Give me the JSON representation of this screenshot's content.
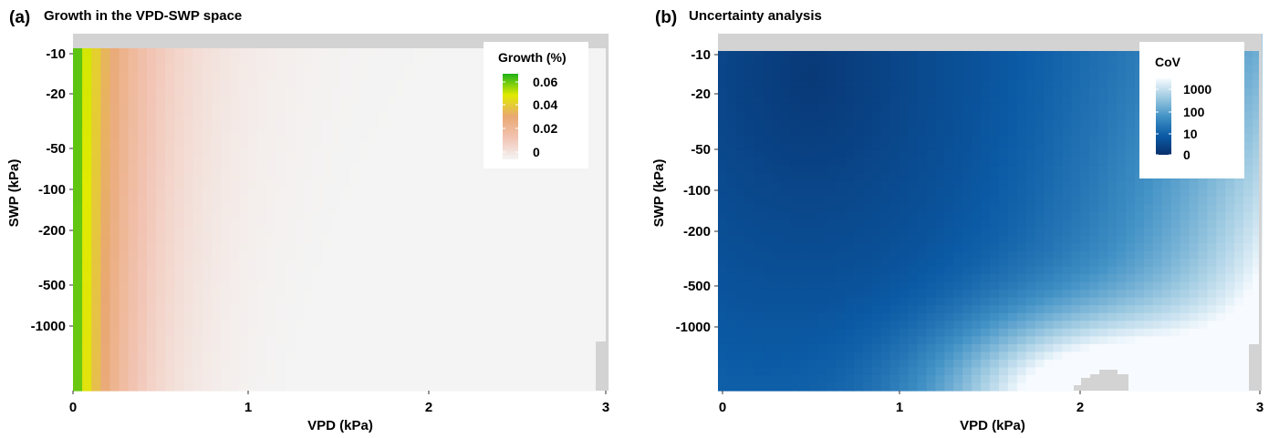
{
  "chart_data": [
    {
      "type": "heatmap",
      "panel_label": "(a)",
      "title": "Growth in the VPD-SWP space",
      "xlabel": "VPD (kPa)",
      "ylabel": "SWP (kPa)",
      "x_ticks": [
        "0",
        "1",
        "2",
        "3"
      ],
      "x_tick_values": [
        0,
        1,
        2,
        3
      ],
      "y_ticks": [
        "-10",
        "-20",
        "-50",
        "-100",
        "-200",
        "-500",
        "-1000"
      ],
      "y_tick_values": [
        -10,
        -20,
        -50,
        -100,
        -200,
        -500,
        -1000
      ],
      "xlim": [
        0,
        3
      ],
      "y_scale": "log",
      "legend": {
        "title": "Growth (%)",
        "labels": [
          "0.06",
          "0.04",
          "0.02",
          "0"
        ],
        "values": [
          0.06,
          0.04,
          0.02,
          0
        ],
        "range": [
          0,
          0.065
        ],
        "colors": [
          "#f4f4f4",
          "#f2c4b4",
          "#e9a873",
          "#e1ea00",
          "#1fb21a"
        ],
        "position": "top-right"
      },
      "missing_color": "#d3d3d3"
    },
    {
      "type": "heatmap",
      "panel_label": "(b)",
      "title": "Uncertainty analysis",
      "xlabel": "VPD (kPa)",
      "ylabel": "SWP (kPa)",
      "x_ticks": [
        "0",
        "1",
        "2",
        "3"
      ],
      "x_tick_values": [
        0,
        1,
        2,
        3
      ],
      "y_ticks": [
        "-10",
        "-20",
        "-50",
        "-100",
        "-200",
        "-500",
        "-1000"
      ],
      "y_tick_values": [
        -10,
        -20,
        -50,
        -100,
        -200,
        -500,
        -1000
      ],
      "xlim": [
        0,
        3
      ],
      "y_scale": "log",
      "legend": {
        "title": "CoV",
        "labels": [
          "1000",
          "100",
          "10",
          "0"
        ],
        "values": [
          1000,
          100,
          10,
          0
        ],
        "colors": [
          "#08306b",
          "#0b5ba6",
          "#4292c6",
          "#9ecae1",
          "#f7fbff"
        ],
        "position": "top-right"
      },
      "missing_color": "#d3d3d3"
    }
  ]
}
